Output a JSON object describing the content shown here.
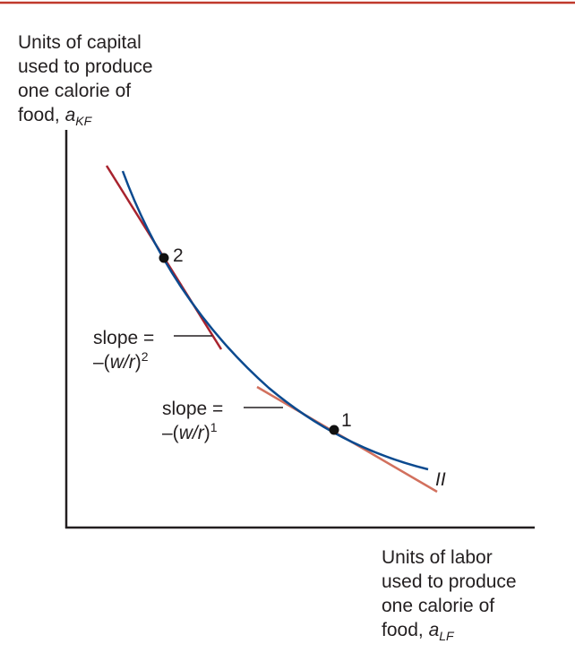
{
  "top_rule_color": "#c0392b",
  "colors": {
    "axis": "#231f20",
    "isoquant": "#0b4a8f",
    "steep_tangent": "#a8232e",
    "flat_tangent": "#d2705d",
    "point": "#111111"
  },
  "y_axis_label": {
    "lines": [
      "Units of capital",
      "used to produce",
      "one calorie of"
    ],
    "last_prefix": "food,",
    "var": "a",
    "sub": "KF"
  },
  "x_axis_label": {
    "lines": [
      "Units of labor",
      "used to produce",
      "one calorie of"
    ],
    "last_prefix": "food,",
    "var": "a",
    "sub": "LF"
  },
  "isoquant_label": "II",
  "points": [
    {
      "label": "1"
    },
    {
      "label": "2"
    }
  ],
  "slope_label_2": {
    "line1": "slope =",
    "prefix": "–(",
    "var": "w/r",
    "suffix": ")",
    "sup": "2"
  },
  "slope_label_1": {
    "line1": "slope =",
    "prefix": "–(",
    "var": "w/r",
    "suffix": ")",
    "sup": "1"
  }
}
